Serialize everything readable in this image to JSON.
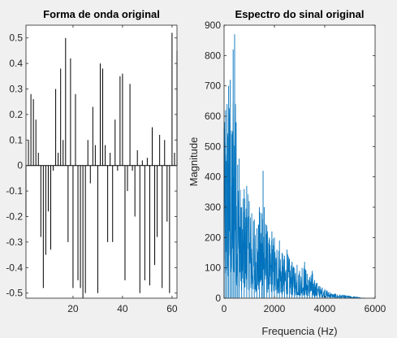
{
  "figure": {
    "background": "#f0f0f0",
    "axes_background": "#ffffff",
    "axis_color": "#262626"
  },
  "chart_data": [
    {
      "type": "stem",
      "title": "Forma de onda original",
      "xlabel": "",
      "ylabel": "",
      "xlim": [
        1,
        62
      ],
      "ylim": [
        -0.52,
        0.55
      ],
      "xticks": [
        20,
        40,
        60
      ],
      "xtick_labels": [
        "20",
        "40",
        "60"
      ],
      "yticks": [
        -0.5,
        -0.4,
        -0.3,
        -0.2,
        -0.1,
        0,
        0.1,
        0.2,
        0.3,
        0.4,
        0.5
      ],
      "ytick_labels": [
        "-0.5",
        "-0.4",
        "-0.3",
        "-0.2",
        "-0.1",
        "0",
        "0.1",
        "0.2",
        "0.3",
        "0.4",
        "0.5"
      ],
      "color": "#000000",
      "x": [
        1,
        2,
        3,
        4,
        5,
        6,
        7,
        8,
        9,
        10,
        11,
        12,
        13,
        14,
        15,
        16,
        17,
        18,
        19,
        20,
        21,
        22,
        23,
        24,
        25,
        26,
        27,
        28,
        29,
        30,
        31,
        32,
        33,
        34,
        35,
        36,
        37,
        38,
        39,
        40,
        41,
        42,
        43,
        44,
        45,
        46,
        47,
        48,
        49,
        50,
        51,
        52,
        53,
        54,
        55,
        56,
        57,
        58,
        59,
        60,
        61,
        62
      ],
      "values": [
        -0.2,
        0.1,
        0.28,
        0.26,
        0.18,
        0.05,
        -0.28,
        -0.48,
        -0.35,
        -0.18,
        -0.33,
        -0.02,
        0.3,
        0.05,
        0.38,
        0.1,
        0.5,
        -0.3,
        0.42,
        -0.48,
        0.28,
        -0.45,
        -0.48,
        -0.52,
        -0.5,
        0.1,
        -0.07,
        0.23,
        0.08,
        -0.5,
        0.4,
        0.38,
        0.08,
        -0.3,
        0.05,
        -0.3,
        0.18,
        -0.02,
        0.35,
        0.36,
        -0.45,
        -0.1,
        0.32,
        -0.02,
        -0.2,
        0.06,
        -0.5,
        0.02,
        -0.45,
        0.03,
        -0.47,
        0.15,
        -0.39,
        -0.28,
        0.12,
        -0.48,
        0.1,
        -0.22,
        -0.5,
        0.52,
        0.05,
        0.45
      ]
    },
    {
      "type": "line",
      "title": "Espectro do sinal original",
      "xlabel": "Frequencia (Hz)",
      "ylabel": "Magnitude",
      "xlim": [
        0,
        6000
      ],
      "ylim": [
        0,
        900
      ],
      "xticks": [
        0,
        2000,
        4000,
        6000
      ],
      "xtick_labels": [
        "0",
        "2000",
        "4000",
        "6000"
      ],
      "yticks": [
        0,
        100,
        200,
        300,
        400,
        500,
        600,
        700,
        800,
        900
      ],
      "ytick_labels": [
        "0",
        "100",
        "200",
        "300",
        "400",
        "500",
        "600",
        "700",
        "800",
        "900"
      ],
      "color": "#0072bd",
      "peaks": {
        "x": [
          0,
          60,
          120,
          180,
          240,
          300,
          360,
          420,
          480,
          540,
          600,
          700,
          800,
          900,
          1000,
          1100,
          1200,
          1300,
          1400,
          1500,
          1550,
          1600,
          1700,
          1800,
          1900,
          2000,
          2100,
          2200,
          2300,
          2400,
          2500,
          2600,
          2700,
          2800,
          2900,
          3000,
          3100,
          3200,
          3300,
          3400,
          3500,
          3600,
          3700,
          3800,
          3900,
          4000,
          4100,
          4200,
          4400,
          4600,
          4800,
          5000,
          5200,
          5400
        ],
        "values": [
          560,
          620,
          640,
          700,
          720,
          540,
          820,
          870,
          580,
          440,
          460,
          300,
          360,
          370,
          320,
          280,
          260,
          230,
          300,
          280,
          420,
          300,
          240,
          200,
          220,
          200,
          160,
          190,
          150,
          140,
          160,
          130,
          120,
          100,
          110,
          90,
          100,
          120,
          80,
          70,
          90,
          60,
          50,
          40,
          35,
          30,
          25,
          20,
          15,
          12,
          10,
          8,
          5,
          3
        ]
      }
    }
  ]
}
